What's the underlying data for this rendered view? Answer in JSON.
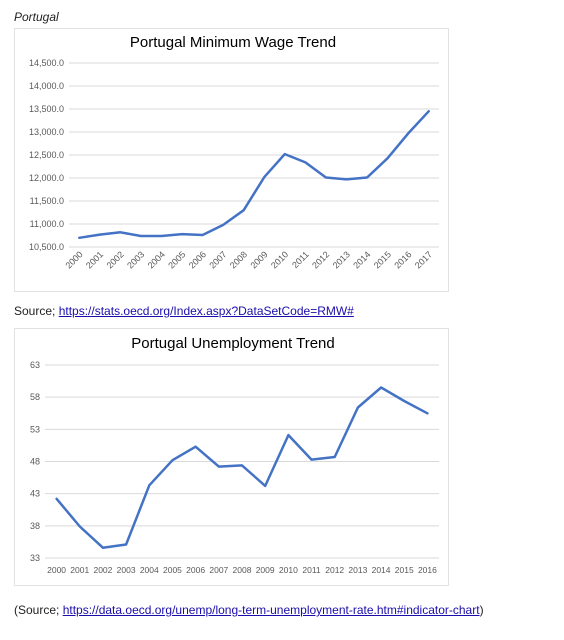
{
  "caption": "Portugal",
  "sources": {
    "first": {
      "prefix": "Source; ",
      "link": "https://stats.oecd.org/Index.aspx?DataSetCode=RMW#",
      "suffix": ""
    },
    "second": {
      "prefix": "(Source; ",
      "link": "https://data.oecd.org/unemp/long-term-unemployment-rate.htm#indicator-chart",
      "suffix": ")"
    }
  },
  "colors": {
    "line": "#4472c4",
    "grid": "#d9d9d9",
    "axis_text": "#595959",
    "title": "#595959"
  },
  "chart_data": [
    {
      "type": "line",
      "title": "Portugal Minimum Wage Trend",
      "xlabel": "",
      "ylabel": "",
      "categories": [
        "2000",
        "2001",
        "2002",
        "2003",
        "2004",
        "2005",
        "2006",
        "2007",
        "2008",
        "2009",
        "2010",
        "2011",
        "2012",
        "2013",
        "2014",
        "2015",
        "2016",
        "2017"
      ],
      "values": [
        10700,
        10770,
        10820,
        10740,
        10740,
        10780,
        10760,
        10980,
        11300,
        12020,
        12520,
        12340,
        12010,
        11970,
        12010,
        12430,
        12970,
        13450
      ],
      "ylim": [
        10500,
        14500
      ],
      "yticks": [
        "10,500.0",
        "11,000.0",
        "11,500.0",
        "12,000.0",
        "12,500.0",
        "13,000.0",
        "13,500.0",
        "14,000.0",
        "14,500.0"
      ],
      "ytick_values": [
        10500,
        11000,
        11500,
        12000,
        12500,
        13000,
        13500,
        14000,
        14500
      ],
      "grid": true,
      "legend": "none",
      "x_tick_rotation": "rotated-45"
    },
    {
      "type": "line",
      "title": "Portugal Unemployment Trend",
      "xlabel": "",
      "ylabel": "",
      "categories": [
        "2000",
        "2001",
        "2002",
        "2003",
        "2004",
        "2005",
        "2006",
        "2007",
        "2008",
        "2009",
        "2010",
        "2011",
        "2012",
        "2013",
        "2014",
        "2015",
        "2016"
      ],
      "values": [
        42.2,
        37.9,
        34.6,
        35.1,
        44.3,
        48.2,
        50.3,
        47.2,
        47.4,
        44.2,
        52.1,
        48.3,
        48.7,
        56.4,
        59.5,
        57.4,
        55.5
      ],
      "ylim": [
        33,
        63
      ],
      "yticks": [
        "33",
        "38",
        "43",
        "48",
        "53",
        "58",
        "63"
      ],
      "ytick_values": [
        33,
        38,
        43,
        48,
        53,
        58,
        63
      ],
      "grid": true,
      "legend": "none",
      "x_tick_rotation": "horizontal"
    }
  ]
}
